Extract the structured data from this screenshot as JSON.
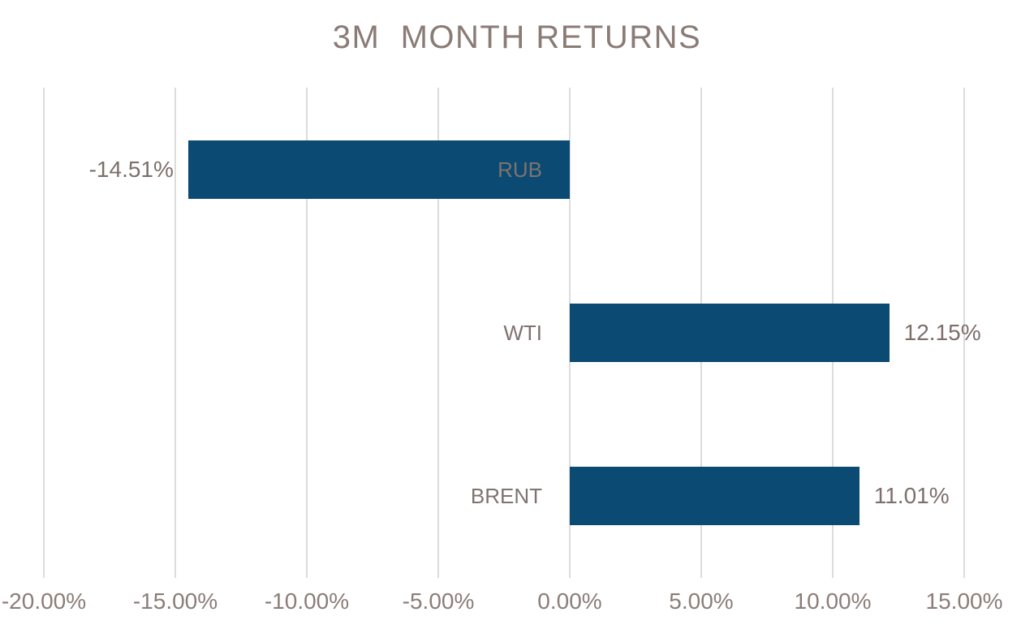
{
  "chart_data": {
    "type": "bar",
    "orientation": "horizontal",
    "title": "3M  MONTH RETURNS",
    "categories": [
      "RUB",
      "WTI",
      "BRENT"
    ],
    "values": [
      -14.51,
      12.15,
      11.01
    ],
    "value_labels": [
      "-14.51%",
      "12.15%",
      "11.01%"
    ],
    "xlabel": "",
    "ylabel": "",
    "xlim": [
      -20,
      15
    ],
    "xticks": [
      -20,
      -15,
      -10,
      -5,
      0,
      5,
      10,
      15
    ],
    "xtick_labels": [
      "-20.00%",
      "-15.00%",
      "-10.00%",
      "-5.00%",
      "0.00%",
      "5.00%",
      "10.00%",
      "15.00%"
    ],
    "grid": "vertical-only",
    "legend": "none",
    "colors": {
      "bar": "#0b4a72",
      "title": "#8a7b75",
      "value_label": "#7d6f6a",
      "category_label": "#7e736f",
      "tick_label": "#8b7d78",
      "gridline": "#dcdcdc",
      "background": "#ffffff"
    }
  }
}
